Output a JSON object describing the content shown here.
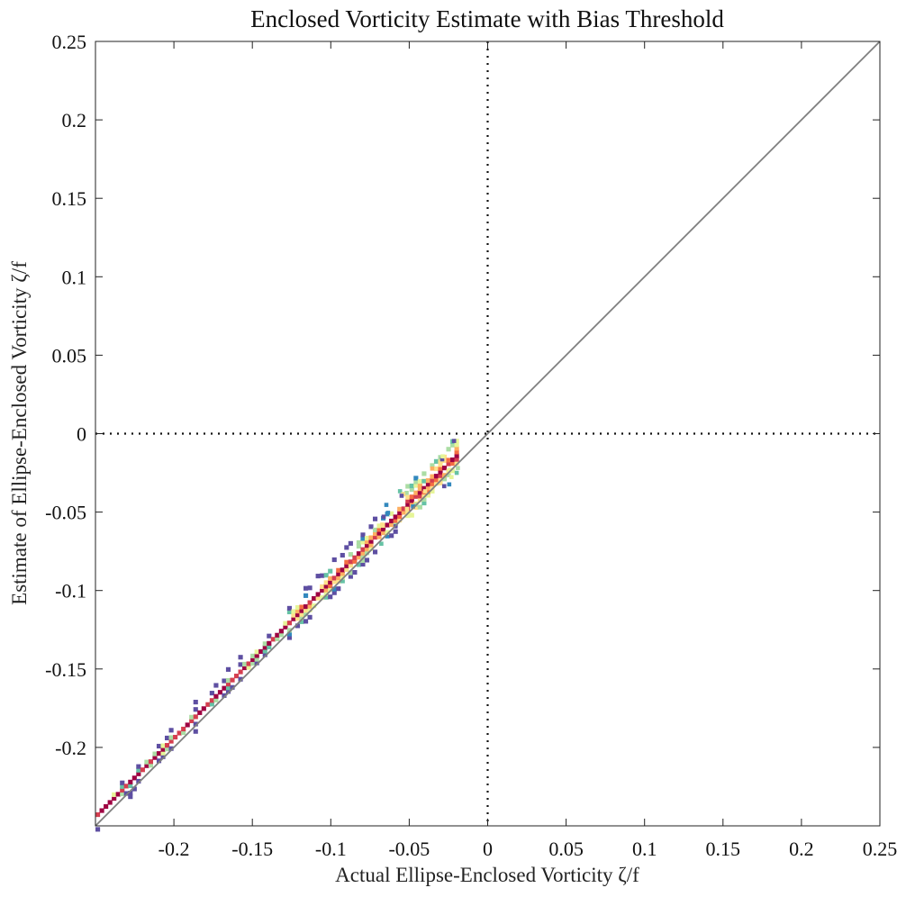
{
  "chart_data": {
    "type": "heatmap",
    "title": "Enclosed Vorticity Estimate with Bias Threshold",
    "xlabel": "Actual Ellipse-Enclosed Vorticity ζ/f",
    "ylabel": "Estimate of Ellipse-Enclosed Vorticity ζ/f",
    "xlim": [
      -0.25,
      0.25
    ],
    "ylim": [
      -0.25,
      0.25
    ],
    "xticks": [
      "-0.2",
      "-0.15",
      "-0.1",
      "-0.05",
      "0",
      "0.05",
      "0.1",
      "0.15",
      "0.2",
      "0.25"
    ],
    "yticks": [
      "0.25",
      "0.2",
      "0.15",
      "0.1",
      "0.05",
      "0",
      "-0.05",
      "-0.1",
      "-0.15",
      "-0.2"
    ],
    "xtick_values": [
      -0.2,
      -0.15,
      -0.1,
      -0.05,
      0,
      0.05,
      0.1,
      0.15,
      0.2,
      0.25
    ],
    "ytick_values": [
      0.25,
      0.2,
      0.15,
      0.1,
      0.05,
      0,
      -0.05,
      -0.1,
      -0.15,
      -0.2
    ],
    "reference_lines": [
      "y = x (gray)",
      "x = 0 (dotted)",
      "y = 0 (dotted)"
    ],
    "density_band": {
      "x_range": [
        -0.25,
        -0.02
      ],
      "estimate_above_actual_offset": 0.006,
      "description": "2D histogram of estimate vs actual; dense ridge just above y = x"
    },
    "colormap": [
      "#9e0142",
      "#d53e4f",
      "#f46d43",
      "#fdae61",
      "#fee08b",
      "#e6f598",
      "#abdda4",
      "#66c2a5",
      "#3288bd",
      "#5e4fa2"
    ],
    "grid": false
  }
}
